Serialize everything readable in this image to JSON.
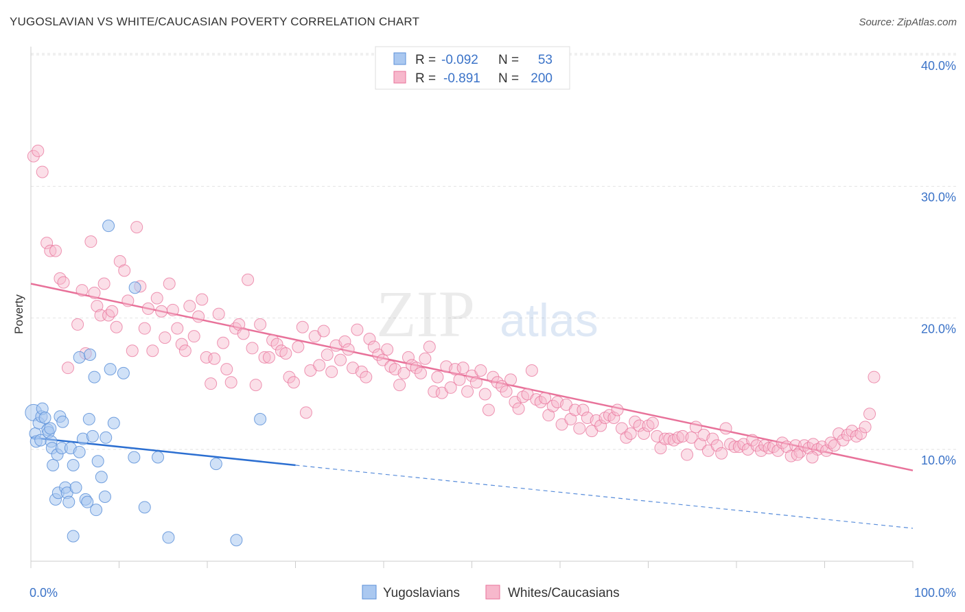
{
  "title": "YUGOSLAVIAN VS WHITE/CAUCASIAN POVERTY CORRELATION CHART",
  "source": "Source: ZipAtlas.com",
  "watermark": {
    "zip": "ZIP",
    "atlas": "atlas"
  },
  "chart_data": {
    "type": "scatter",
    "ylabel": "Poverty",
    "xlim": [
      0,
      100
    ],
    "ylim": [
      0,
      42
    ],
    "x_tick_labels": [
      "0.0%",
      "100.0%"
    ],
    "y_ticks": [
      10,
      20,
      30,
      40
    ],
    "y_tick_labels": [
      "10.0%",
      "20.0%",
      "30.0%",
      "40.0%"
    ],
    "grid": true,
    "legend_position": "top-center",
    "colors": {
      "blue": "#5b8fd8",
      "blue_fill": "#aac8f0",
      "blue_line": "#2c6fd1",
      "pink": "#e8729a",
      "pink_fill": "#f7b8cc",
      "text_blue": "#3b73c8"
    },
    "stats": [
      {
        "r_label": "R =",
        "r": "-0.092",
        "n_label": "N =",
        "n": "53"
      },
      {
        "r_label": "R =",
        "r": "-0.891",
        "n_label": "N =",
        "n": "200"
      }
    ],
    "series": [
      {
        "name": "Yugoslavians",
        "color": "#5b8fd8",
        "trend": {
          "x": [
            0,
            30
          ],
          "y": [
            10.9,
            8.8
          ],
          "dashed_to": [
            100,
            4.0
          ]
        },
        "points": [
          [
            0.3,
            12.8
          ],
          [
            0.5,
            11.2
          ],
          [
            0.6,
            10.6
          ],
          [
            0.9,
            12
          ],
          [
            1.1,
            10.7
          ],
          [
            1.2,
            12.5
          ],
          [
            1.3,
            13.1
          ],
          [
            1.6,
            12.4
          ],
          [
            1.9,
            11.5
          ],
          [
            2.0,
            11.3
          ],
          [
            2.2,
            11.6
          ],
          [
            2.3,
            10.6
          ],
          [
            2.4,
            10.1
          ],
          [
            2.5,
            8.8
          ],
          [
            2.8,
            6.2
          ],
          [
            3.0,
            9.6
          ],
          [
            3.1,
            6.7
          ],
          [
            3.3,
            12.5
          ],
          [
            3.5,
            10.1
          ],
          [
            3.6,
            12.1
          ],
          [
            3.9,
            7.1
          ],
          [
            4.1,
            6.7
          ],
          [
            4.3,
            6.0
          ],
          [
            4.5,
            10.1
          ],
          [
            4.8,
            3.4
          ],
          [
            4.8,
            8.8
          ],
          [
            5.1,
            7.1
          ],
          [
            5.5,
            9.8
          ],
          [
            5.9,
            10.8
          ],
          [
            6.2,
            6.2
          ],
          [
            6.4,
            6.0
          ],
          [
            6.6,
            12.3
          ],
          [
            7.0,
            11
          ],
          [
            7.2,
            15.5
          ],
          [
            7.4,
            5.4
          ],
          [
            7.6,
            9.1
          ],
          [
            8.0,
            7.9
          ],
          [
            8.4,
            6.4
          ],
          [
            8.5,
            10.9
          ],
          [
            8.8,
            27.0
          ],
          [
            9.0,
            16.1
          ],
          [
            9.4,
            12.0
          ],
          [
            10.5,
            15.8
          ],
          [
            11.7,
            9.4
          ],
          [
            11.8,
            22.3
          ],
          [
            12.9,
            5.6
          ],
          [
            14.4,
            9.4
          ],
          [
            15.6,
            3.3
          ],
          [
            21.0,
            8.9
          ],
          [
            23.3,
            3.1
          ],
          [
            26.0,
            12.3
          ],
          [
            5.5,
            17.0
          ],
          [
            6.7,
            17.2
          ]
        ]
      },
      {
        "name": "Whites/Caucasians",
        "color": "#e8729a",
        "trend": {
          "x": [
            0,
            100
          ],
          "y": [
            22.6,
            8.4
          ]
        },
        "points": [
          [
            0.3,
            32.3
          ],
          [
            0.8,
            32.7
          ],
          [
            1.3,
            31.1
          ],
          [
            1.8,
            25.7
          ],
          [
            2.2,
            25.1
          ],
          [
            2.8,
            25.1
          ],
          [
            3.3,
            23.0
          ],
          [
            3.7,
            22.7
          ],
          [
            4.2,
            16.2
          ],
          [
            5.3,
            19.5
          ],
          [
            5.8,
            22.1
          ],
          [
            6.2,
            17.3
          ],
          [
            6.8,
            25.8
          ],
          [
            7.2,
            21.9
          ],
          [
            7.5,
            20.9
          ],
          [
            7.9,
            20.2
          ],
          [
            8.3,
            22.6
          ],
          [
            8.8,
            20.2
          ],
          [
            9.2,
            20.5
          ],
          [
            9.7,
            19.3
          ],
          [
            10.1,
            24.3
          ],
          [
            10.6,
            23.6
          ],
          [
            11.0,
            21.3
          ],
          [
            11.5,
            17.5
          ],
          [
            12.0,
            26.9
          ],
          [
            12.4,
            22.4
          ],
          [
            12.9,
            19.2
          ],
          [
            13.3,
            20.7
          ],
          [
            13.8,
            17.5
          ],
          [
            14.3,
            21.5
          ],
          [
            14.8,
            20.5
          ],
          [
            15.2,
            18.5
          ],
          [
            15.7,
            22.6
          ],
          [
            16.1,
            20.6
          ],
          [
            16.6,
            19.2
          ],
          [
            17.1,
            18.0
          ],
          [
            17.5,
            17.5
          ],
          [
            18.0,
            20.9
          ],
          [
            18.5,
            18.6
          ],
          [
            19.0,
            20.1
          ],
          [
            19.4,
            21.4
          ],
          [
            19.9,
            17.0
          ],
          [
            20.4,
            15.0
          ],
          [
            20.8,
            16.9
          ],
          [
            21.3,
            20.3
          ],
          [
            21.8,
            18.1
          ],
          [
            22.2,
            16.1
          ],
          [
            22.7,
            15.1
          ],
          [
            23.2,
            19.2
          ],
          [
            23.6,
            19.5
          ],
          [
            24.1,
            18.8
          ],
          [
            24.6,
            22.9
          ],
          [
            25.1,
            17.7
          ],
          [
            25.5,
            14.9
          ],
          [
            26.0,
            19.5
          ],
          [
            26.5,
            17.0
          ],
          [
            27.0,
            17.0
          ],
          [
            27.4,
            18.3
          ],
          [
            27.9,
            18.0
          ],
          [
            28.4,
            17.5
          ],
          [
            28.9,
            17.3
          ],
          [
            29.3,
            15.5
          ],
          [
            29.8,
            15.1
          ],
          [
            30.3,
            17.8
          ],
          [
            30.8,
            19.3
          ],
          [
            31.2,
            12.8
          ],
          [
            31.7,
            16.0
          ],
          [
            32.2,
            18.6
          ],
          [
            32.7,
            16.4
          ],
          [
            33.2,
            19.0
          ],
          [
            33.6,
            17.2
          ],
          [
            34.1,
            15.9
          ],
          [
            34.6,
            17.9
          ],
          [
            35.1,
            16.8
          ],
          [
            35.6,
            18.2
          ],
          [
            36.0,
            17.6
          ],
          [
            36.5,
            16.2
          ],
          [
            37.0,
            19.1
          ],
          [
            37.5,
            15.9
          ],
          [
            38.0,
            15.5
          ],
          [
            38.4,
            18.4
          ],
          [
            38.9,
            17.8
          ],
          [
            39.4,
            17.2
          ],
          [
            39.9,
            16.8
          ],
          [
            40.4,
            17.6
          ],
          [
            40.8,
            16.3
          ],
          [
            41.3,
            16.1
          ],
          [
            41.8,
            14.9
          ],
          [
            42.3,
            15.8
          ],
          [
            42.8,
            17.0
          ],
          [
            43.2,
            16.4
          ],
          [
            43.7,
            16.2
          ],
          [
            44.2,
            15.8
          ],
          [
            44.7,
            16.9
          ],
          [
            45.2,
            17.8
          ],
          [
            45.7,
            14.4
          ],
          [
            46.1,
            15.5
          ],
          [
            46.6,
            14.3
          ],
          [
            47.1,
            16.3
          ],
          [
            47.6,
            14.7
          ],
          [
            48.1,
            16.1
          ],
          [
            48.6,
            15.3
          ],
          [
            49.0,
            16.2
          ],
          [
            49.5,
            14.4
          ],
          [
            50.0,
            15.6
          ],
          [
            50.5,
            15.1
          ],
          [
            51.0,
            16.0
          ],
          [
            51.5,
            14.2
          ],
          [
            51.9,
            13.0
          ],
          [
            52.4,
            15.5
          ],
          [
            52.9,
            15.1
          ],
          [
            53.4,
            14.8
          ],
          [
            53.9,
            14.4
          ],
          [
            54.4,
            15.3
          ],
          [
            54.9,
            13.6
          ],
          [
            55.3,
            13.1
          ],
          [
            55.8,
            14.0
          ],
          [
            56.3,
            14.2
          ],
          [
            56.8,
            16.0
          ],
          [
            57.3,
            13.8
          ],
          [
            57.8,
            13.6
          ],
          [
            58.3,
            13.9
          ],
          [
            58.7,
            12.6
          ],
          [
            59.2,
            13.3
          ],
          [
            59.7,
            13.6
          ],
          [
            60.2,
            11.9
          ],
          [
            60.7,
            13.4
          ],
          [
            61.2,
            12.3
          ],
          [
            61.7,
            13.0
          ],
          [
            62.2,
            11.6
          ],
          [
            62.6,
            13.0
          ],
          [
            63.1,
            12.4
          ],
          [
            63.6,
            11.4
          ],
          [
            64.1,
            12.2
          ],
          [
            64.6,
            11.8
          ],
          [
            65.1,
            12.4
          ],
          [
            65.6,
            12.6
          ],
          [
            66.1,
            12.4
          ],
          [
            66.5,
            13.0
          ],
          [
            67.0,
            11.6
          ],
          [
            67.5,
            10.9
          ],
          [
            68.0,
            11.2
          ],
          [
            68.5,
            12.1
          ],
          [
            69.0,
            11.8
          ],
          [
            69.5,
            11.2
          ],
          [
            70.0,
            11.8
          ],
          [
            70.5,
            12.0
          ],
          [
            71.0,
            11.0
          ],
          [
            71.4,
            10.1
          ],
          [
            71.9,
            10.8
          ],
          [
            72.4,
            10.8
          ],
          [
            72.9,
            10.7
          ],
          [
            73.4,
            10.9
          ],
          [
            73.9,
            11.0
          ],
          [
            74.4,
            9.6
          ],
          [
            74.9,
            10.9
          ],
          [
            75.4,
            11.7
          ],
          [
            75.9,
            10.4
          ],
          [
            76.3,
            11.1
          ],
          [
            76.8,
            9.9
          ],
          [
            77.3,
            10.8
          ],
          [
            77.8,
            10.3
          ],
          [
            78.3,
            9.7
          ],
          [
            78.8,
            11.6
          ],
          [
            79.3,
            10.4
          ],
          [
            79.8,
            10.2
          ],
          [
            80.3,
            10.2
          ],
          [
            80.8,
            10.4
          ],
          [
            81.3,
            10.0
          ],
          [
            81.8,
            10.7
          ],
          [
            82.3,
            10.3
          ],
          [
            82.8,
            9.9
          ],
          [
            83.2,
            10.3
          ],
          [
            83.7,
            10.1
          ],
          [
            84.2,
            10.2
          ],
          [
            84.7,
            9.9
          ],
          [
            85.2,
            10.5
          ],
          [
            85.7,
            10.2
          ],
          [
            86.2,
            9.5
          ],
          [
            86.7,
            10.3
          ],
          [
            87.2,
            9.8
          ],
          [
            87.7,
            10.3
          ],
          [
            88.2,
            10.1
          ],
          [
            88.7,
            10.4
          ],
          [
            89.2,
            10.0
          ],
          [
            89.7,
            10.2
          ],
          [
            90.2,
            9.9
          ],
          [
            90.7,
            10.5
          ],
          [
            91.1,
            10.3
          ],
          [
            91.6,
            11.2
          ],
          [
            92.1,
            10.7
          ],
          [
            92.6,
            11.1
          ],
          [
            93.1,
            11.4
          ],
          [
            93.6,
            11.0
          ],
          [
            94.1,
            11.2
          ],
          [
            94.6,
            11.7
          ],
          [
            95.1,
            12.7
          ],
          [
            95.6,
            15.5
          ],
          [
            88.6,
            9.4
          ],
          [
            86.9,
            9.6
          ]
        ]
      }
    ]
  }
}
